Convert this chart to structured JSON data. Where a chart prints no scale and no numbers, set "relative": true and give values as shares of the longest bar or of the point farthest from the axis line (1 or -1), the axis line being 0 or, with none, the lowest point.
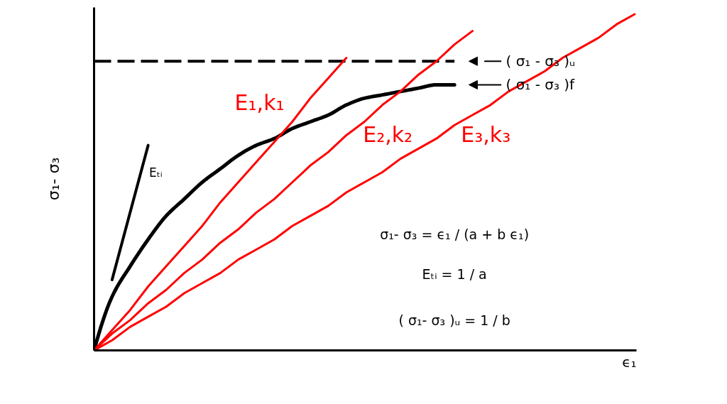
{
  "chart_data": {
    "type": "line",
    "relative": true,
    "xlabel": "ϵ₁",
    "ylabel": "σ₁- σ₃",
    "legend": "top right",
    "categories": [
      null,
      null,
      null,
      null,
      null,
      null,
      null,
      null,
      null,
      null,
      null,
      null,
      null,
      null,
      null,
      null,
      null,
      null,
      null,
      null,
      null,
      null,
      null,
      null,
      null,
      null,
      null,
      null,
      null,
      null,
      null
    ],
    "series": [
      {
        "name": "( σ₁ - σ₃ )f",
        "color": "#000000",
        "values": [
          0,
          0.16,
          0.25,
          0.33,
          0.4,
          0.45,
          0.5,
          0.54,
          0.58,
          0.61,
          0.63,
          0.66,
          0.68,
          0.7,
          0.73,
          0.75,
          0.76,
          0.77,
          0.78,
          0.79,
          0.79,
          null,
          null,
          null,
          null,
          null,
          null,
          null,
          null,
          null,
          null
        ]
      },
      {
        "name": "( σ₁ - σ₃ )ᵤ",
        "color": "#000000",
        "line_style": "dashed",
        "values": [
          0.86,
          0.86,
          0.86,
          0.86,
          0.86,
          0.86,
          0.86,
          0.86,
          0.86,
          0.86,
          0.86,
          0.86,
          0.86,
          0.86,
          0.86,
          0.86,
          0.86,
          0.86,
          0.86,
          0.86,
          0.86,
          null,
          null,
          null,
          null,
          null,
          null,
          null,
          null,
          null,
          null
        ]
      },
      {
        "name": "E₁,k₁",
        "color": "#ff0000",
        "values": [
          0,
          0.06,
          0.12,
          0.19,
          0.25,
          0.31,
          0.37,
          0.44,
          0.5,
          0.56,
          0.62,
          0.68,
          0.75,
          0.81,
          0.87,
          null,
          null,
          null,
          null,
          null,
          null,
          null,
          null,
          null,
          null,
          null,
          null,
          null,
          null,
          null,
          null
        ]
      },
      {
        "name": "E₂,k₂",
        "color": "#ff0000",
        "values": [
          0,
          0.05,
          0.09,
          0.14,
          0.18,
          0.23,
          0.27,
          0.32,
          0.36,
          0.41,
          0.45,
          0.5,
          0.55,
          0.59,
          0.64,
          0.68,
          0.73,
          0.77,
          0.82,
          0.86,
          0.91,
          0.95,
          null,
          null,
          null,
          null,
          null,
          null,
          null,
          null,
          null
        ]
      },
      {
        "name": "E₃,k₃",
        "color": "#ff0000",
        "values": [
          0,
          0.03,
          0.07,
          0.1,
          0.13,
          0.17,
          0.2,
          0.23,
          0.27,
          0.3,
          0.33,
          0.37,
          0.4,
          0.43,
          0.47,
          0.5,
          0.53,
          0.57,
          0.6,
          0.63,
          0.67,
          0.7,
          0.73,
          0.77,
          0.8,
          0.83,
          0.87,
          0.9,
          0.93,
          0.97,
          1
        ]
      },
      {
        "name": "Eₜᵢ",
        "color": "#000000",
        "values": [
          null,
          0.21,
          0.41,
          0.61,
          null,
          null,
          null,
          null,
          null,
          null,
          null,
          null,
          null,
          null,
          null,
          null,
          null,
          null,
          null,
          null,
          null,
          null,
          null,
          null,
          null,
          null,
          null,
          null,
          null,
          null,
          null
        ]
      }
    ],
    "annotations": [
      "σ₁- σ₃ = ϵ₁ / (a + b ϵ₁)",
      "Eₜᵢ = 1 / a",
      "( σ₁- σ₃ )ᵤ = 1 / b"
    ]
  }
}
